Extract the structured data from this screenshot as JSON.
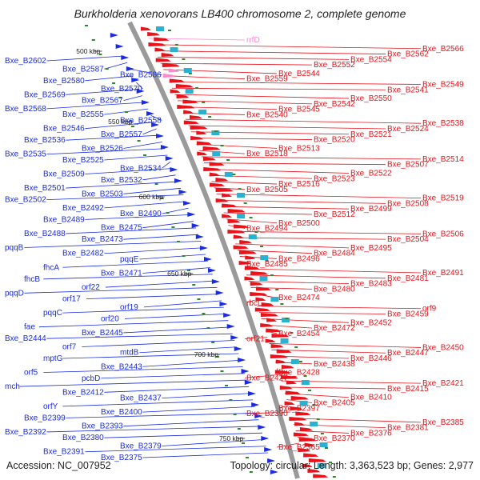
{
  "title": "Burkholderia xenovorans LB400 chromosome 2, complete genome",
  "accession": "Accession: NC_007952",
  "summary": "Topology: circular; Length: 3,363,523 bp; Genes: 2,977",
  "colors": {
    "forward": "#e8121a",
    "reverse": "#1a2be0",
    "backbone": "#9a9a9a",
    "tick": "#2a8a2a",
    "pink": "#ff88cc"
  },
  "ticks": [
    "500 kbp",
    "550 kbp",
    "600 kbp",
    "650 kbp",
    "700 kbp",
    "750 kbp"
  ],
  "forward_labels": [
    "rrfD",
    "Bxe_B2566",
    "Bxe_B2562",
    "Bxe_B2554",
    "Bxe_B2552",
    "Bxe_B2544",
    "Bxe_B2559",
    "Bxe_B2549",
    "Bxe_B2541",
    "Bxe_B2550",
    "Bxe_B2542",
    "Bxe_B2545",
    "Bxe_B2540",
    "Bxe_B2538",
    "Bxe_B2524",
    "Bxe_B2521",
    "Bxe_B2520",
    "Bxe_B2513",
    "Bxe_B2518",
    "Bxe_B2514",
    "Bxe_B2507",
    "Bxe_B2522",
    "Bxe_B2523",
    "Bxe_B2516",
    "Bxe_B2505",
    "Bxe_B2519",
    "Bxe_B2508",
    "Bxe_B2499",
    "Bxe_B2512",
    "Bxe_B2500",
    "Bxe_B2494",
    "Bxe_B2506",
    "Bxe_B2504",
    "Bxe_B2495",
    "Bxe_B2484",
    "Bxe_B2496",
    "Bxe_B2485",
    "Bxe_B2491",
    "Bxe_B2481",
    "Bxe_B2483",
    "Bxe_B2480",
    "Bxe_B2474",
    "rbcL",
    "orf9",
    "Bxe_B2459",
    "Bxe_B2452",
    "Bxe_B2472",
    "Bxe_B2454",
    "orf21",
    "Bxe_B2450",
    "Bxe_B2447",
    "Bxe_B2446",
    "Bxe_B2438",
    "Bxe_B2428",
    "Bxe_B2427",
    "Bxe_B2421",
    "Bxe_B2415",
    "Bxe_B2410",
    "Bxe_B2405",
    "Bxe_B2397",
    "Bxe_B2390",
    "Bxe_B2385",
    "Bxe_B2381",
    "Bxe_B2376",
    "Bxe_B2370",
    "Bxe_B2365"
  ],
  "reverse_labels": [
    "Bxe_B2602",
    "Bxe_B2587",
    "Bxe_B2586",
    "Bxe_B2580",
    "Bxe_B2570",
    "Bxe_B2569",
    "Bxe_B2567",
    "Bxe_B2568",
    "Bxe_B2555",
    "Bxe_B2558",
    "Bxe_B2546",
    "Bxe_B2557",
    "Bxe_B2536",
    "Bxe_B2526",
    "Bxe_B2535",
    "Bxe_B2525",
    "Bxe_B2534",
    "Bxe_B2509",
    "Bxe_B2532",
    "Bxe_B2501",
    "Bxe_B2503",
    "Bxe_B2502",
    "Bxe_B2492",
    "Bxe_B2490",
    "Bxe_B2489",
    "Bxe_B2475",
    "Bxe_B2488",
    "Bxe_B2473",
    "pqqB",
    "Bxe_B2482",
    "pqqE",
    "fhcA",
    "Bxe_B2471",
    "fhcB",
    "orf22",
    "pqqD",
    "orf17",
    "orf19",
    "pqqC",
    "orf20",
    "fae",
    "Bxe_B2445",
    "Bxe_B2444",
    "orf7",
    "mtdB",
    "mptG",
    "Bxe_B2443",
    "orf5",
    "pcbD",
    "mch",
    "Bxe_B2412",
    "Bxe_B2437",
    "orfY",
    "Bxe_B2400",
    "Bxe_B2399",
    "Bxe_B2393",
    "Bxe_B2392",
    "Bxe_B2380",
    "Bxe_B2379",
    "Bxe_B2391",
    "Bxe_B2375"
  ]
}
